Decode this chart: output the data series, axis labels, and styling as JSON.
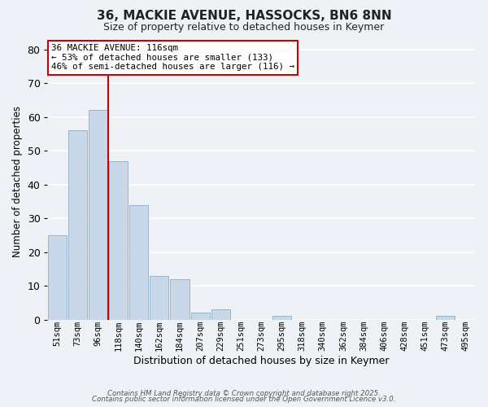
{
  "title": "36, MACKIE AVENUE, HASSOCKS, BN6 8NN",
  "subtitle": "Size of property relative to detached houses in Keymer",
  "xlabel": "Distribution of detached houses by size in Keymer",
  "ylabel": "Number of detached properties",
  "bar_color": "#c8d8e8",
  "bar_edge_color": "#9ab4cc",
  "categories": [
    "51sqm",
    "73sqm",
    "96sqm",
    "118sqm",
    "140sqm",
    "162sqm",
    "184sqm",
    "207sqm",
    "229sqm",
    "251sqm",
    "273sqm",
    "295sqm",
    "318sqm",
    "340sqm",
    "362sqm",
    "384sqm",
    "406sqm",
    "428sqm",
    "451sqm",
    "473sqm",
    "495sqm"
  ],
  "values": [
    25,
    56,
    62,
    47,
    34,
    13,
    12,
    2,
    3,
    0,
    0,
    1,
    0,
    0,
    0,
    0,
    0,
    0,
    0,
    1,
    0
  ],
  "ylim": [
    0,
    82
  ],
  "yticks": [
    0,
    10,
    20,
    30,
    40,
    50,
    60,
    70,
    80
  ],
  "vline_index": 3,
  "vline_color": "#cc0000",
  "annotation_line1": "36 MACKIE AVENUE: 116sqm",
  "annotation_line2": "← 53% of detached houses are smaller (133)",
  "annotation_line3": "46% of semi-detached houses are larger (116) →",
  "annotation_box_color": "#ffffff",
  "annotation_box_edge": "#cc0000",
  "background_color": "#eef2f7",
  "grid_color": "#ffffff",
  "footer1": "Contains HM Land Registry data © Crown copyright and database right 2025.",
  "footer2": "Contains public sector information licensed under the Open Government Licence v3.0."
}
